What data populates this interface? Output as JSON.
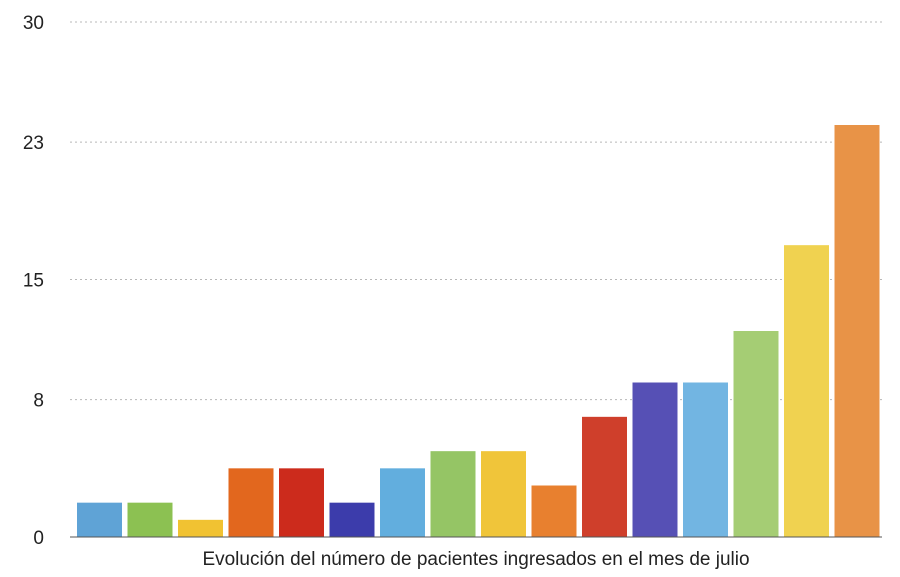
{
  "chart_data": {
    "type": "bar",
    "title": "",
    "xlabel": "Evolución del número de pacientes ingresados en el mes de julio",
    "ylabel": "",
    "ylim": [
      0,
      30
    ],
    "yticks": [
      "0",
      "8",
      "15",
      "23",
      "30"
    ],
    "grid": true,
    "values": [
      2,
      2,
      1,
      4,
      4,
      2,
      4,
      5,
      5,
      3,
      7,
      9,
      9,
      12,
      17,
      24
    ],
    "colors": [
      "#5fa3d6",
      "#8cc152",
      "#f1c232",
      "#e2671e",
      "#cc2b1c",
      "#3c3cab",
      "#62aede",
      "#95c565",
      "#f0c53a",
      "#e8802f",
      "#cf3f2b",
      "#5650b5",
      "#72b5e2",
      "#a5cd74",
      "#f0d250",
      "#e89347"
    ]
  }
}
